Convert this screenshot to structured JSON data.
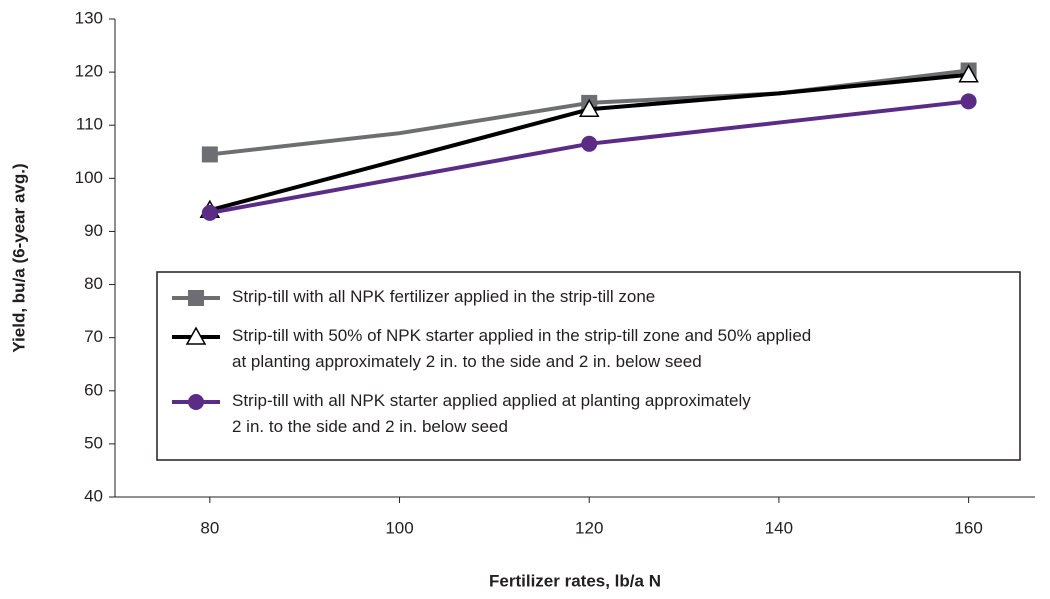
{
  "chart_data": {
    "type": "line",
    "xlabel": "Fertilizer rates, lb/a N",
    "ylabel": "Yield, bu/a (6-year avg.)",
    "x": [
      80,
      100,
      120,
      140,
      160
    ],
    "series": [
      {
        "name": "Strip-till with all NPK fertilizer applied in the strip-till zone",
        "color": "#6d6e71",
        "marker": "square",
        "values": [
          104.5,
          108.5,
          114.2,
          116,
          120.3
        ]
      },
      {
        "name": "Strip-till with 50% of NPK starter applied in the strip-till zone and 50% applied\nat planting approximately 2 in. to the side and 2 in. below seed",
        "color": "#000000",
        "marker": "triangle",
        "values": [
          94,
          103.5,
          113,
          116,
          119.5
        ]
      },
      {
        "name": "Strip-till with all NPK starter applied  applied at planting approximately\n2 in. to the side and 2 in. below seed",
        "color": "#5b2c86",
        "marker": "circle",
        "values": [
          93.5,
          100,
          106.5,
          110.5,
          114.5
        ]
      }
    ],
    "markers_at": [
      80,
      120,
      160
    ],
    "xlim": [
      70,
      167
    ],
    "xticks": [
      80,
      100,
      120,
      140,
      160
    ],
    "ylim": [
      40,
      130
    ],
    "yticks": [
      40,
      50,
      60,
      70,
      80,
      90,
      100,
      110,
      120,
      130
    ],
    "grid": false
  }
}
